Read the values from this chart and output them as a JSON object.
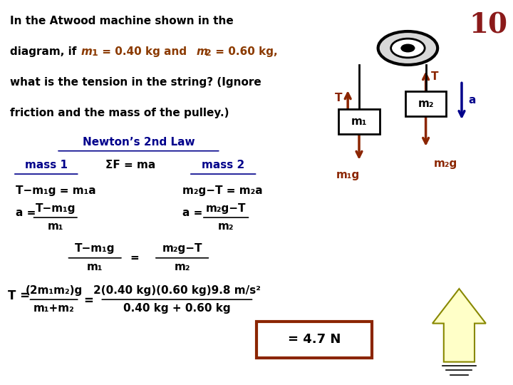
{
  "bg_color": "#ffffff",
  "title_number": "10",
  "title_number_color": "#8B1A1A",
  "title_number_size": 28,
  "text_color_black": "#000000",
  "text_color_orange": "#8B3A00",
  "text_color_blue": "#00008B",
  "text_color_red_brown": "#8B2500",
  "problem_text_line1": "In the Atwood machine shown in the",
  "problem_text_line3": "what is the tension in the string? (Ignore",
  "problem_text_line4": "friction and the mass of the pulley.)",
  "section_title": "Newton’s 2nd Law",
  "sum_F_ma": "ΣF = ma",
  "mass1_label": "mass 1",
  "mass2_label": "mass 2",
  "answer": "= 4.7 N",
  "answer_box_color": "#8B2500",
  "fig_width": 7.2,
  "fig_height": 5.4
}
